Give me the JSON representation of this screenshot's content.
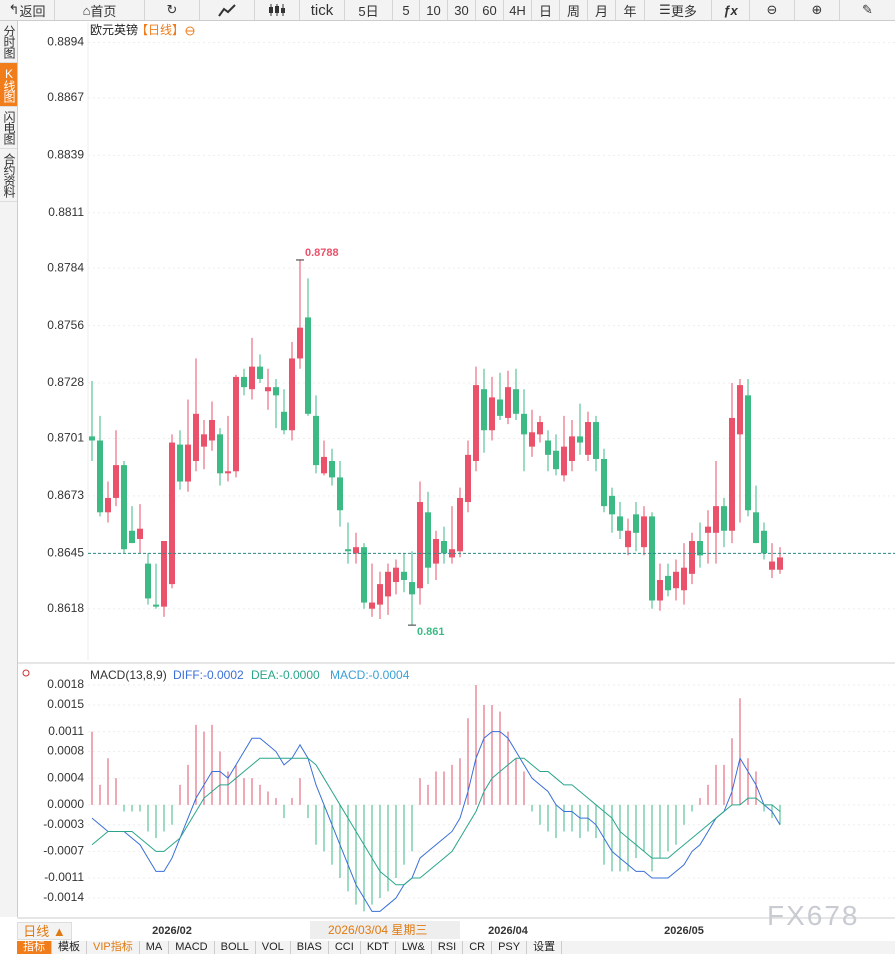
{
  "toolbar": [
    "返回",
    "首页",
    "tick",
    "5日",
    "5",
    "10",
    "30",
    "60",
    "4H",
    "日",
    "周",
    "月",
    "年",
    "更多"
  ],
  "sidebar": [
    "分时图",
    "K线图",
    "闪电图",
    "合约资料"
  ],
  "chart_data": [
    {
      "type": "candlestick",
      "title": "欧元英镑",
      "period": "【日线】",
      "categories": [
        null,
        null,
        null,
        null,
        null,
        null,
        null,
        null,
        null,
        null,
        "2026/02",
        null,
        null,
        null,
        null,
        null,
        null,
        null,
        null,
        null,
        null,
        null,
        null,
        null,
        null,
        null,
        null,
        null,
        null,
        null,
        null,
        null,
        null,
        null,
        null,
        null,
        null,
        null,
        null,
        null,
        null,
        null,
        null,
        null,
        null,
        null,
        null,
        null,
        null,
        null,
        null,
        null,
        "2026/04",
        null,
        null,
        null,
        null,
        null,
        null,
        null,
        null,
        null,
        null,
        null,
        null,
        null,
        null,
        null,
        null,
        null,
        null,
        null,
        null,
        null,
        "2026/05",
        null,
        null,
        null,
        null,
        null,
        null,
        null,
        null,
        null,
        null,
        null,
        null
      ],
      "ohlc": [
        [
          0.8702,
          0.8729,
          0.869,
          0.87
        ],
        [
          0.87,
          0.8712,
          0.8663,
          0.8665
        ],
        [
          0.8665,
          0.868,
          0.866,
          0.8672
        ],
        [
          0.8672,
          0.8705,
          0.8668,
          0.8688
        ],
        [
          0.8688,
          0.869,
          0.8645,
          0.8647
        ],
        [
          0.8656,
          0.8668,
          0.865,
          0.865
        ],
        [
          0.8652,
          0.8669,
          0.8645,
          0.8657
        ],
        [
          0.864,
          0.8645,
          0.862,
          0.8623
        ],
        [
          0.862,
          0.864,
          0.8618,
          0.8619
        ],
        [
          0.8619,
          0.865,
          0.8614,
          0.8651
        ],
        [
          0.863,
          0.8703,
          0.8628,
          0.8699
        ],
        [
          0.8698,
          0.8705,
          0.8676,
          0.868
        ],
        [
          0.868,
          0.872,
          0.8675,
          0.8698
        ],
        [
          0.869,
          0.874,
          0.8685,
          0.8713
        ],
        [
          0.8697,
          0.871,
          0.8686,
          0.8703
        ],
        [
          0.87,
          0.8719,
          0.8695,
          0.871
        ],
        [
          0.8703,
          0.8706,
          0.8678,
          0.8684
        ],
        [
          0.8684,
          0.8712,
          0.868,
          0.8685
        ],
        [
          0.8685,
          0.8732,
          0.8682,
          0.8731
        ],
        [
          0.8731,
          0.8735,
          0.8722,
          0.8726
        ],
        [
          0.8725,
          0.875,
          0.872,
          0.8736
        ],
        [
          0.8736,
          0.8742,
          0.8728,
          0.873
        ],
        [
          0.8724,
          0.8735,
          0.8715,
          0.8726
        ],
        [
          0.8726,
          0.873,
          0.8706,
          0.8722
        ],
        [
          0.8714,
          0.8725,
          0.8703,
          0.8705
        ],
        [
          0.8705,
          0.8748,
          0.87,
          0.874
        ],
        [
          0.874,
          0.8788,
          0.8735,
          0.8755
        ],
        [
          0.876,
          0.8779,
          0.8712,
          0.8713
        ],
        [
          0.8712,
          0.8722,
          0.8684,
          0.8688
        ],
        [
          0.8684,
          0.87,
          0.8683,
          0.8692
        ],
        [
          0.869,
          0.8696,
          0.8678,
          0.8682
        ],
        [
          0.8682,
          0.869,
          0.8658,
          0.8666
        ],
        [
          0.8647,
          0.866,
          0.864,
          0.8646
        ],
        [
          0.8645,
          0.8655,
          0.864,
          0.8648
        ],
        [
          0.8648,
          0.865,
          0.8618,
          0.8621
        ],
        [
          0.8618,
          0.864,
          0.8614,
          0.8621
        ],
        [
          0.862,
          0.8636,
          0.8613,
          0.863
        ],
        [
          0.8624,
          0.864,
          0.8615,
          0.8636
        ],
        [
          0.8631,
          0.8642,
          0.8625,
          0.8638
        ],
        [
          0.8636,
          0.8645,
          0.8626,
          0.8632
        ],
        [
          0.8631,
          0.8646,
          0.861,
          0.8625
        ],
        [
          0.8628,
          0.868,
          0.862,
          0.867
        ],
        [
          0.8665,
          0.8675,
          0.863,
          0.8638
        ],
        [
          0.864,
          0.8656,
          0.8632,
          0.8652
        ],
        [
          0.8651,
          0.8658,
          0.864,
          0.8645
        ],
        [
          0.8643,
          0.8668,
          0.864,
          0.8647
        ],
        [
          0.8646,
          0.8677,
          0.8643,
          0.8672
        ],
        [
          0.867,
          0.87,
          0.8665,
          0.8693
        ],
        [
          0.869,
          0.8736,
          0.8685,
          0.8727
        ],
        [
          0.8725,
          0.8735,
          0.8694,
          0.8705
        ],
        [
          0.8705,
          0.8731,
          0.87,
          0.8721
        ],
        [
          0.872,
          0.8733,
          0.871,
          0.8712
        ],
        [
          0.8711,
          0.8734,
          0.8708,
          0.8726
        ],
        [
          0.8725,
          0.8735,
          0.871,
          0.8713
        ],
        [
          0.8713,
          0.8725,
          0.8685,
          0.8703
        ],
        [
          0.8697,
          0.8715,
          0.8692,
          0.8704
        ],
        [
          0.8703,
          0.8712,
          0.8699,
          0.8709
        ],
        [
          0.87,
          0.8705,
          0.8685,
          0.8693
        ],
        [
          0.8695,
          0.8703,
          0.8683,
          0.8686
        ],
        [
          0.8683,
          0.8712,
          0.868,
          0.8697
        ],
        [
          0.869,
          0.871,
          0.8685,
          0.8702
        ],
        [
          0.8702,
          0.8718,
          0.8693,
          0.8699
        ],
        [
          0.8693,
          0.8714,
          0.869,
          0.8709
        ],
        [
          0.8709,
          0.8712,
          0.8685,
          0.8691
        ],
        [
          0.8691,
          0.8696,
          0.8665,
          0.8668
        ],
        [
          0.8673,
          0.8677,
          0.8655,
          0.8664
        ],
        [
          0.8663,
          0.867,
          0.8652,
          0.8656
        ],
        [
          0.8648,
          0.8662,
          0.8644,
          0.8656
        ],
        [
          0.8664,
          0.867,
          0.8646,
          0.8655
        ],
        [
          0.8648,
          0.8668,
          0.8644,
          0.8663
        ],
        [
          0.8663,
          0.8665,
          0.8618,
          0.8622
        ],
        [
          0.8622,
          0.864,
          0.8617,
          0.8632
        ],
        [
          0.8634,
          0.864,
          0.8624,
          0.8627
        ],
        [
          0.8628,
          0.8642,
          0.8622,
          0.8636
        ],
        [
          0.8627,
          0.865,
          0.862,
          0.8638
        ],
        [
          0.8635,
          0.8655,
          0.863,
          0.8651
        ],
        [
          0.8651,
          0.866,
          0.8638,
          0.8644
        ],
        [
          0.8655,
          0.8666,
          0.864,
          0.8658
        ],
        [
          0.8655,
          0.869,
          0.864,
          0.8668
        ],
        [
          0.8668,
          0.8672,
          0.8648,
          0.8656
        ],
        [
          0.8656,
          0.8728,
          0.865,
          0.8711
        ],
        [
          0.8703,
          0.873,
          0.866,
          0.8727
        ],
        [
          0.8722,
          0.873,
          0.8663,
          0.8666
        ],
        [
          0.8665,
          0.8678,
          0.865,
          0.865
        ],
        [
          0.8656,
          0.866,
          0.8642,
          0.8645
        ],
        [
          0.8637,
          0.865,
          0.8633,
          0.8641
        ],
        [
          0.8637,
          0.8648,
          0.8635,
          0.8643
        ]
      ],
      "up_color": "#e9526a",
      "down_color": "#3dba84",
      "ylim": [
        0.8593,
        0.8904
      ],
      "yticks": [
        0.8894,
        0.8867,
        0.8839,
        0.8811,
        0.8784,
        0.8756,
        0.8728,
        0.8701,
        0.8673,
        0.8645,
        0.8618
      ],
      "grid": true,
      "last_price": 0.8645,
      "high_label": 0.8788,
      "low_label": 0.861
    },
    {
      "type": "macd",
      "title": "MACD(13,8,9)",
      "legend": [
        {
          "text": "DIFF:-0.0002",
          "color": "#3a6fd8"
        },
        {
          "text": "DEA:-0.0000",
          "color": "#2aa58a"
        },
        {
          "text": "MACD:-0.0004",
          "color": "#3aa0d8"
        }
      ],
      "histogram": [
        0.0011,
        0.0003,
        0.0007,
        0.0004,
        -0.0001,
        -0.0001,
        -0.0001,
        -0.0004,
        -0.0005,
        -0.0004,
        -0.0003,
        0.0003,
        0.0006,
        0.0012,
        0.0011,
        0.0012,
        0.0008,
        0.0005,
        0.0006,
        0.0004,
        0.0004,
        0.0003,
        0.0002,
        0.0001,
        -0.0002,
        0.0001,
        0.0004,
        -0.0002,
        -0.0006,
        -0.0007,
        -0.0009,
        -0.0011,
        -0.0013,
        -0.0015,
        -0.0016,
        -0.0015,
        -0.0014,
        -0.0013,
        -0.0011,
        -0.0009,
        -0.0007,
        0.0004,
        0.0003,
        0.0005,
        0.0005,
        0.0006,
        0.0007,
        0.0013,
        0.0018,
        0.0015,
        0.0015,
        0.0014,
        0.0011,
        0.0007,
        0.0005,
        -0.0001,
        -0.0003,
        -0.0004,
        -0.0005,
        -0.0004,
        -0.0004,
        -0.0005,
        -0.0004,
        -0.0005,
        -0.0009,
        -0.001,
        -0.001,
        -0.001,
        -0.0008,
        -0.0007,
        -0.001,
        -0.0008,
        -0.0007,
        -0.0006,
        -0.0003,
        -0.0001,
        0.0001,
        0.0003,
        0.0006,
        0.0006,
        0.001,
        0.0016,
        0.0007,
        0.0005,
        -0.0001,
        -0.0002,
        -0.0003
      ],
      "diff": [
        -0.0002,
        -0.0003,
        -0.0004,
        -0.0004,
        -0.0004,
        -0.0005,
        -0.0006,
        -0.0008,
        -0.001,
        -0.001,
        -0.0008,
        -0.0005,
        -0.0002,
        0.0001,
        0.0003,
        0.0005,
        0.0005,
        0.0004,
        0.0006,
        0.0008,
        0.001,
        0.001,
        0.0009,
        0.0008,
        0.0006,
        0.0007,
        0.0009,
        0.0007,
        0.0003,
        0.0,
        -0.0003,
        -0.0006,
        -0.0009,
        -0.0012,
        -0.0014,
        -0.0016,
        -0.0016,
        -0.0015,
        -0.0014,
        -0.0012,
        -0.0011,
        -0.0008,
        -0.0007,
        -0.0006,
        -0.0005,
        -0.0004,
        -0.0002,
        0.0002,
        0.0007,
        0.001,
        0.0011,
        0.0011,
        0.001,
        0.0008,
        0.0006,
        0.0004,
        0.0003,
        0.0002,
        0.0,
        -0.0001,
        -0.0001,
        -0.0002,
        -0.0002,
        -0.0003,
        -0.0005,
        -0.0007,
        -0.0008,
        -0.0009,
        -0.001,
        -0.001,
        -0.0011,
        -0.0011,
        -0.0011,
        -0.001,
        -0.0009,
        -0.0007,
        -0.0006,
        -0.0004,
        -0.0002,
        -0.0001,
        0.0002,
        0.0007,
        0.0005,
        0.0003,
        0.0,
        -0.0001,
        -0.0003
      ],
      "dea": [
        -0.0006,
        -0.0005,
        -0.0004,
        -0.0004,
        -0.0004,
        -0.0004,
        -0.0005,
        -0.0006,
        -0.0007,
        -0.0007,
        -0.0006,
        -0.0005,
        -0.0003,
        -0.0001,
        0.0001,
        0.0002,
        0.0003,
        0.0003,
        0.0004,
        0.0005,
        0.0006,
        0.0007,
        0.0007,
        0.0007,
        0.0007,
        0.0007,
        0.0007,
        0.0007,
        0.0006,
        0.0004,
        0.0002,
        0.0,
        -0.0002,
        -0.0004,
        -0.0006,
        -0.0008,
        -0.001,
        -0.0011,
        -0.0012,
        -0.0012,
        -0.0011,
        -0.0011,
        -0.001,
        -0.0009,
        -0.0008,
        -0.0007,
        -0.0005,
        -0.0003,
        -0.0001,
        0.0002,
        0.0004,
        0.0005,
        0.0006,
        0.0007,
        0.0007,
        0.0006,
        0.0005,
        0.0005,
        0.0004,
        0.0003,
        0.0003,
        0.0002,
        0.0001,
        0.0,
        -0.0001,
        -0.0002,
        -0.0004,
        -0.0005,
        -0.0006,
        -0.0007,
        -0.0008,
        -0.0008,
        -0.0008,
        -0.0007,
        -0.0006,
        -0.0005,
        -0.0004,
        -0.0003,
        -0.0002,
        -0.0001,
        0.0,
        0.0,
        0.0001,
        0.0001,
        0.0,
        0.0,
        -0.0001
      ],
      "up_color": "#e05068",
      "down_color": "#3dba84",
      "diff_color": "#3a6fd8",
      "dea_color": "#2aa58a",
      "ylim": [
        -0.0017,
        0.0021
      ],
      "yticks": [
        0.0018,
        0.0015,
        0.0011,
        0.0008,
        0.0004,
        {
          "value": 0,
          "label": "0.0000"
        },
        -0.0003,
        -0.0007,
        -0.0011,
        -0.0014
      ]
    }
  ],
  "crosshair_label": "2026/03/04 星期三",
  "period_button": "日线 ▲",
  "bottom_tabs": [
    "指标",
    "模板",
    "VIP指标",
    "MA",
    "MACD",
    "BOLL",
    "VOL",
    "BIAS",
    "CCI",
    "KDT",
    "LW&",
    "RSI",
    "CR",
    "PSY",
    "设置"
  ],
  "watermark": "FX678"
}
